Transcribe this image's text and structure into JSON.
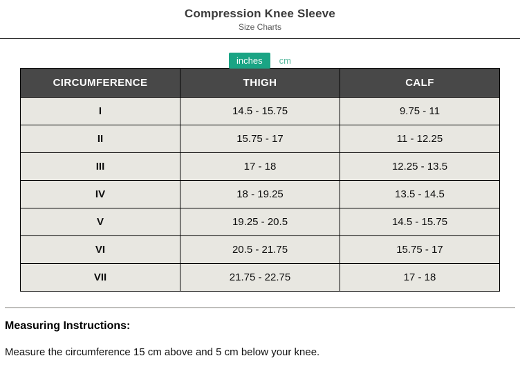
{
  "page": {
    "title": "Compression Knee Sleeve",
    "subtitle": "Size Charts"
  },
  "unit_toggle": {
    "accent_color": "#1aa484",
    "options": [
      {
        "label": "inches",
        "selected": true
      },
      {
        "label": "cm",
        "selected": false
      }
    ]
  },
  "size_table": {
    "columns": [
      "CIRCUMFERENCE",
      "THIGH",
      "CALF"
    ],
    "rows": [
      {
        "size": "I",
        "thigh": "14.5 - 15.75",
        "calf": "9.75 - 11"
      },
      {
        "size": "II",
        "thigh": "15.75 - 17",
        "calf": "11 - 12.25"
      },
      {
        "size": "III",
        "thigh": "17 - 18",
        "calf": "12.25 - 13.5"
      },
      {
        "size": "IV",
        "thigh": "18 - 19.25",
        "calf": "13.5 - 14.5"
      },
      {
        "size": "V",
        "thigh": "19.25 - 20.5",
        "calf": "14.5 - 15.75"
      },
      {
        "size": "VI",
        "thigh": "20.5 - 21.75",
        "calf": "15.75 - 17"
      },
      {
        "size": "VII",
        "thigh": "21.75 - 22.75",
        "calf": "17 - 18"
      }
    ],
    "header_bg": "#484848",
    "row_bg": "#e8e7e1"
  },
  "instructions": {
    "heading": "Measuring Instructions:",
    "body": "Measure the circumference 15 cm above and 5 cm below your knee."
  }
}
